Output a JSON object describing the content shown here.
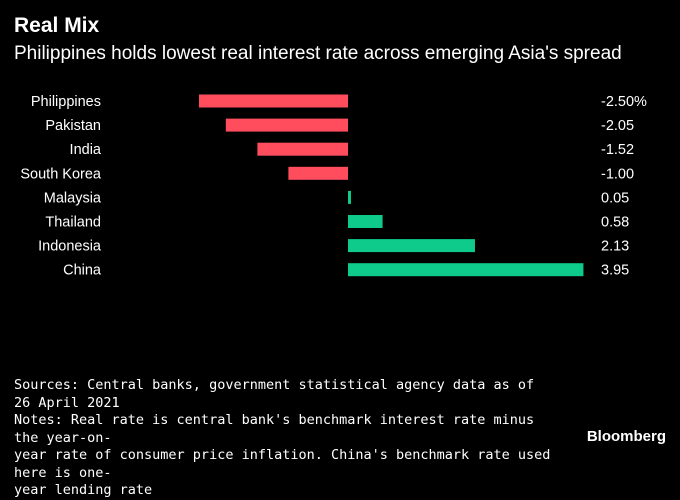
{
  "header": {
    "title": "Real Mix",
    "subtitle": "Philippines holds lowest real interest rate across emerging Asia's spread"
  },
  "chart_data": {
    "type": "bar",
    "orientation": "horizontal",
    "categories": [
      "Philippines",
      "Pakistan",
      "India",
      "South Korea",
      "Malaysia",
      "Thailand",
      "Indonesia",
      "China"
    ],
    "values": [
      -2.5,
      -2.05,
      -1.52,
      -1.0,
      0.05,
      0.58,
      2.13,
      3.95
    ],
    "value_labels": [
      "-2.50%",
      "-2.05",
      "-1.52",
      "-1.00",
      "0.05",
      "0.58",
      "2.13",
      "3.95"
    ],
    "negative_color": "#ff4d5e",
    "positive_color": "#0ecb8c",
    "xlim": [
      -2.5,
      3.95
    ],
    "grid": false,
    "legend": false
  },
  "footer": {
    "sources": "Sources: Central banks, government statistical agency data as of 26 April 2021",
    "notes": [
      "Notes: Real rate is central bank's benchmark interest rate minus the year-on-",
      "year rate of consumer price inflation. China's benchmark rate used here is one-",
      "year lending rate"
    ],
    "brand": "Bloomberg"
  }
}
